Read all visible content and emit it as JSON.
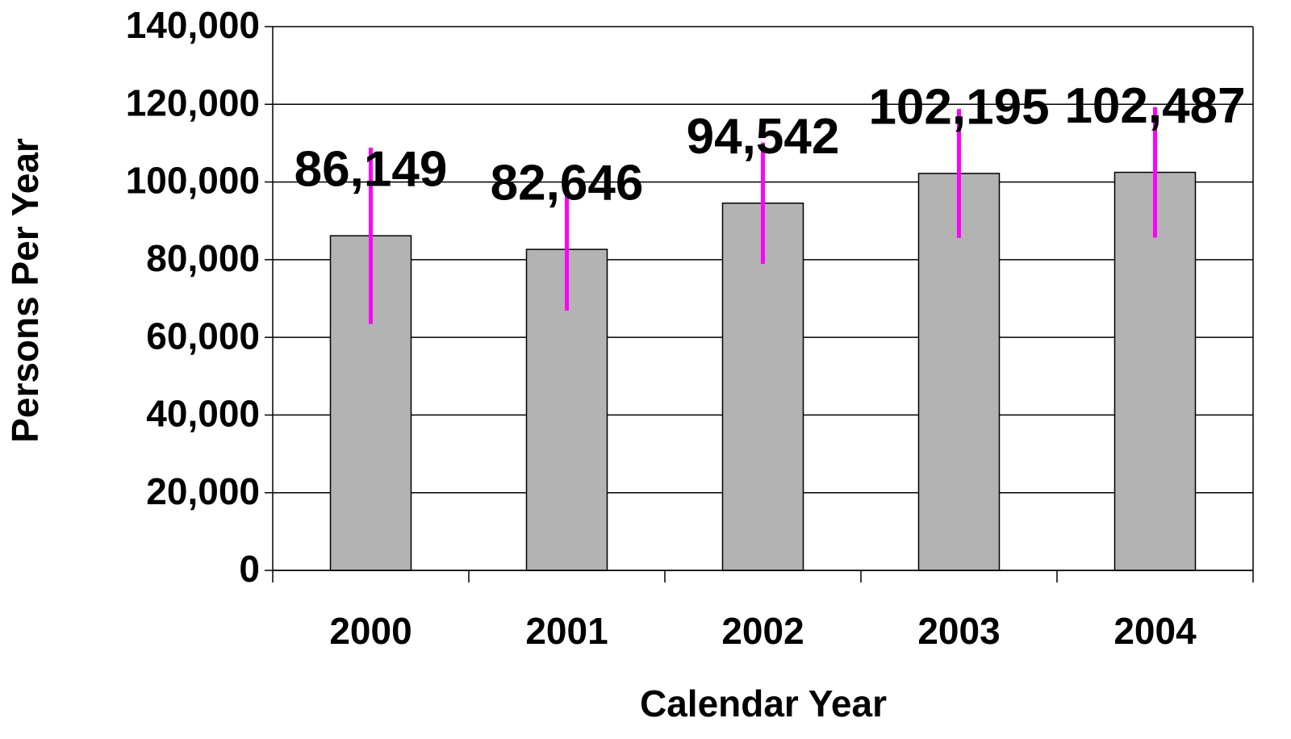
{
  "chart_data": {
    "type": "bar",
    "x_label": "Calendar Year",
    "y_label": "Persons Per Year",
    "categories": [
      "2000",
      "2001",
      "2002",
      "2003",
      "2004"
    ],
    "values": [
      86149,
      82646,
      94542,
      102195,
      102487
    ],
    "value_labels": [
      "86,149",
      "82,646",
      "94,542",
      "102,195",
      "102,487"
    ],
    "errors": [
      22700,
      15800,
      15600,
      16600,
      16800
    ],
    "color": "#b3b3b3",
    "error_color": "#ff00ff",
    "ylim": [
      0,
      140000
    ],
    "yticks": [
      0,
      {
        "value": 20000,
        "label": "20,000"
      },
      {
        "value": 40000,
        "label": "40,000"
      },
      {
        "value": 60000,
        "label": "60,000"
      },
      {
        "value": 80000,
        "label": "80,000"
      },
      {
        "value": 100000,
        "label": "100,000"
      },
      {
        "value": 120000,
        "label": "120,000"
      },
      {
        "value": 140000,
        "label": "140,000"
      }
    ],
    "grid": true
  }
}
